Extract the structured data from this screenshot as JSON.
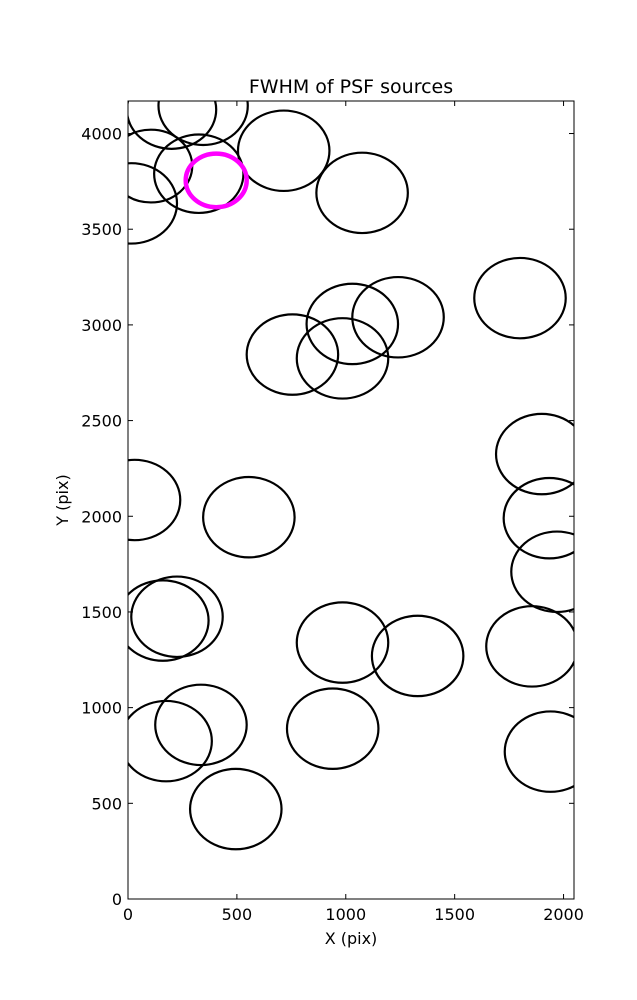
{
  "chart_data": {
    "type": "scatter",
    "title": "FWHM of PSF sources",
    "xlabel": "X (pix)",
    "ylabel": "Y (pix)",
    "xlim": [
      0,
      2048
    ],
    "ylim": [
      0,
      4170
    ],
    "xticks": [
      0,
      500,
      1000,
      1500,
      2000
    ],
    "yticks": [
      0,
      500,
      1000,
      1500,
      2000,
      2500,
      3000,
      3500,
      4000
    ],
    "grid": false,
    "marker": "open-circle",
    "default_color": "#000000",
    "highlight_color": "#ff00ff",
    "sources": [
      {
        "x": 345,
        "y": 4145,
        "r": 205
      },
      {
        "x": 200,
        "y": 4125,
        "r": 205
      },
      {
        "x": 715,
        "y": 3910,
        "r": 210
      },
      {
        "x": 105,
        "y": 3830,
        "r": 190
      },
      {
        "x": 325,
        "y": 3790,
        "r": 205
      },
      {
        "x": 405,
        "y": 3755,
        "r": 140,
        "highlight": true
      },
      {
        "x": 15,
        "y": 3635,
        "r": 210
      },
      {
        "x": 1075,
        "y": 3690,
        "r": 210
      },
      {
        "x": 1240,
        "y": 3040,
        "r": 210
      },
      {
        "x": 1030,
        "y": 3005,
        "r": 210
      },
      {
        "x": 1800,
        "y": 3140,
        "r": 210
      },
      {
        "x": 755,
        "y": 2845,
        "r": 210
      },
      {
        "x": 985,
        "y": 2825,
        "r": 210
      },
      {
        "x": 1900,
        "y": 2325,
        "r": 210
      },
      {
        "x": 30,
        "y": 2085,
        "r": 210
      },
      {
        "x": 555,
        "y": 1995,
        "r": 210
      },
      {
        "x": 1935,
        "y": 1990,
        "r": 210
      },
      {
        "x": 1970,
        "y": 1710,
        "r": 210
      },
      {
        "x": 225,
        "y": 1475,
        "r": 210
      },
      {
        "x": 160,
        "y": 1455,
        "r": 210
      },
      {
        "x": 985,
        "y": 1340,
        "r": 210
      },
      {
        "x": 1330,
        "y": 1270,
        "r": 210
      },
      {
        "x": 1855,
        "y": 1320,
        "r": 210
      },
      {
        "x": 335,
        "y": 910,
        "r": 210
      },
      {
        "x": 175,
        "y": 825,
        "r": 210
      },
      {
        "x": 940,
        "y": 890,
        "r": 210
      },
      {
        "x": 1940,
        "y": 770,
        "r": 210
      },
      {
        "x": 495,
        "y": 470,
        "r": 210
      }
    ]
  }
}
